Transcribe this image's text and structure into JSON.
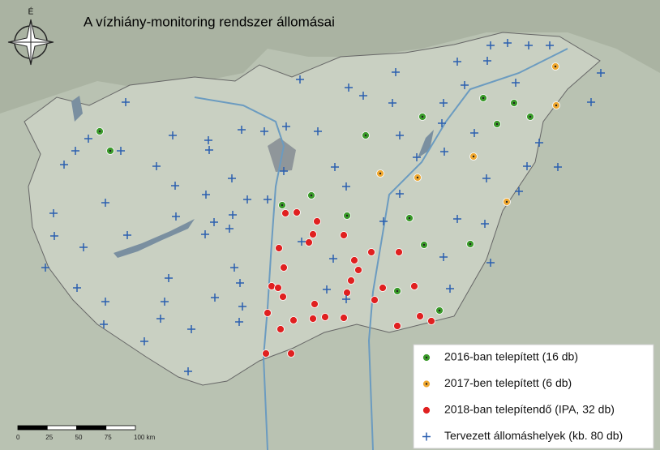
{
  "title": "A vízhiány-monitoring rendszer állomásai",
  "compass": "É",
  "legend": [
    {
      "label": "2016-ban telepített (16 db)",
      "color": "#3a9a2a",
      "symbol": "dot"
    },
    {
      "label": "2017-ben telepített (6 db)",
      "color": "#f0a830",
      "symbol": "dot"
    },
    {
      "label": "2018-ban telepítendő (IPA, 32 db)",
      "color": "#e02020",
      "symbol": "dot"
    },
    {
      "label": "Tervezett állomáshelyek (kb. 80 db)",
      "color": "#2a5fb0",
      "symbol": "cross"
    }
  ],
  "scale_bar": {
    "labels": [
      "0",
      "25",
      "50",
      "75",
      "100 km"
    ]
  }
}
